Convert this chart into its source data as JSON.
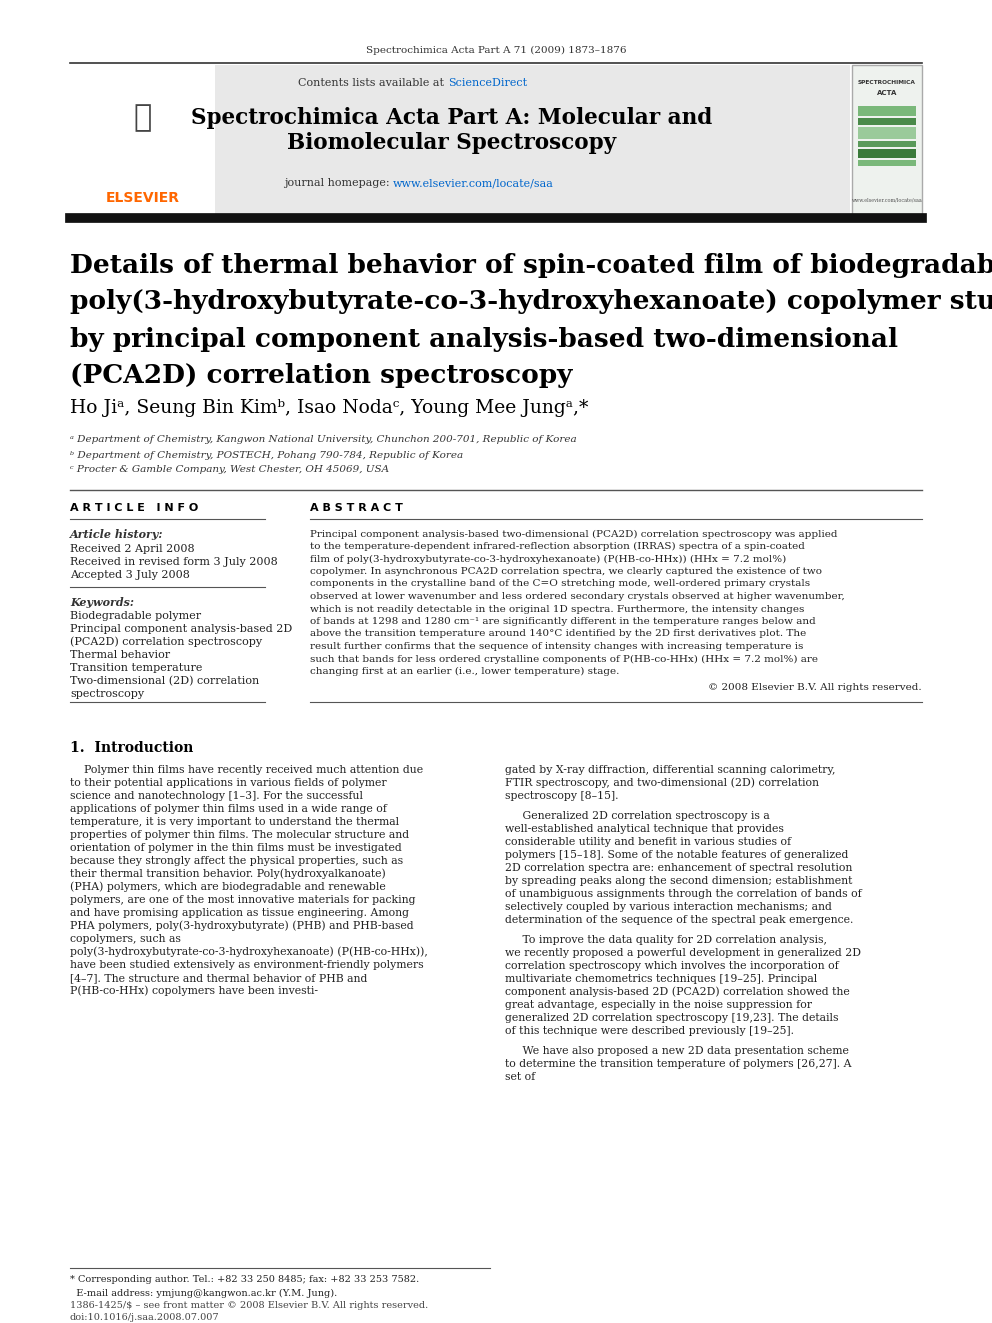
{
  "page_background": "#ffffff",
  "journal_ref": "Spectrochimica Acta Part A 71 (2009) 1873–1876",
  "contents_text": "Contents lists available at ",
  "sciencedirect_text": "ScienceDirect",
  "sciencedirect_color": "#0066cc",
  "journal_title_line1": "Spectrochimica Acta Part A: Molecular and",
  "journal_title_line2": "Biomolecular Spectroscopy",
  "journal_homepage_text": "journal homepage: ",
  "journal_homepage_url": "www.elsevier.com/locate/saa",
  "journal_homepage_color": "#0066cc",
  "header_bg": "#e8e8e8",
  "article_title": "Details of thermal behavior of spin-coated film of biodegradable\npoly(3-hydroxybutyrate-co-3-hydroxyhexanoate) copolymer studied\nby principal component analysis-based two-dimensional\n(PCA2D) correlation spectroscopy",
  "authors": "Ho Jiᵃ, Seung Bin Kimᵇ, Isao Nodaᶜ, Young Mee Jungᵃ,*",
  "affil_a": "ᵃ Department of Chemistry, Kangwon National University, Chunchon 200-701, Republic of Korea",
  "affil_b": "ᵇ Department of Chemistry, POSTECH, Pohang 790-784, Republic of Korea",
  "affil_c": "ᶜ Procter & Gamble Company, West Chester, OH 45069, USA",
  "article_info_title": "A R T I C L E   I N F O",
  "article_history_title": "Article history:",
  "received": "Received 2 April 2008",
  "revised": "Received in revised form 3 July 2008",
  "accepted": "Accepted 3 July 2008",
  "keywords_title": "Keywords:",
  "keywords": [
    "Biodegradable polymer",
    "Principal component analysis-based 2D\n(PCA2D) correlation spectroscopy",
    "Thermal behavior",
    "Transition temperature",
    "Two-dimensional (2D) correlation\nspectroscopy"
  ],
  "abstract_title": "A B S T R A C T",
  "abstract_text": "Principal component analysis-based two-dimensional (PCA2D) correlation spectroscopy was applied to the temperature-dependent infrared-reflection absorption (IRRAS) spectra of a spin-coated film of poly(3-hydroxybutyrate-co-3-hydroxyhexanoate) (P(HB-co-HHx)) (HHx = 7.2 mol%) copolymer. In asynchronous PCA2D correlation spectra, we clearly captured the existence of two components in the crystalline band of the C=O stretching mode, well-ordered primary crystals observed at lower wavenumber and less ordered secondary crystals observed at higher wavenumber, which is not readily detectable in the original 1D spectra. Furthermore, the intensity changes of bands at 1298 and 1280 cm⁻¹ are significantly different in the temperature ranges below and above the transition temperature around 140°C identified by the 2D first derivatives plot. The result further confirms that the sequence of intensity changes with increasing temperature is such that bands for less ordered crystalline components of P(HB-co-HHx) (HHx = 7.2 mol%) are changing first at an earlier (i.e., lower temperature) stage.",
  "copyright": "© 2008 Elsevier B.V. All rights reserved.",
  "intro_title": "1.  Introduction",
  "intro_col1": "Polymer thin films have recently received much attention due to their potential applications in various fields of polymer science and nanotechnology [1–3]. For the successful applications of polymer thin films used in a wide range of temperature, it is very important to understand the thermal properties of polymer thin films. The molecular structure and orientation of polymer in the thin films must be investigated because they strongly affect the physical properties, such as their thermal transition behavior. Poly(hydroxyalkanoate) (PHA) polymers, which are biodegradable and renewable polymers, are one of the most innovative materials for packing and have promising application as tissue engineering. Among PHA polymers, poly(3-hydroxybutyrate) (PHB) and PHB-based copolymers, such as poly(3-hydroxybutyrate-co-3-hydroxyhexanoate) (P(HB-co-HHx)), have been studied extensively as environment-friendly polymers [4–7]. The structure and thermal behavior of PHB and P(HB-co-HHx) copolymers have been investi-",
  "intro_col2": "gated by X-ray diffraction, differential scanning calorimetry, FTIR spectroscopy, and two-dimensional (2D) correlation spectroscopy [8–15].\n\nGeneralized 2D correlation spectroscopy is a well-established analytical technique that provides considerable utility and benefit in various studies of polymers [15–18]. Some of the notable features of generalized 2D correlation spectra are: enhancement of spectral resolution by spreading peaks along the second dimension; establishment of unambiguous assignments through the correlation of bands of selectively coupled by various interaction mechanisms; and determination of the sequence of the spectral peak emergence.\n\nTo improve the data quality for 2D correlation analysis, we recently proposed a powerful development in generalized 2D correlation spectroscopy which involves the incorporation of multivariate chemometrics techniques [19–25]. Principal component analysis-based 2D (PCA2D) correlation showed the great advantage, especially in the noise suppression for generalized 2D correlation spectroscopy [19,23]. The details of this technique were described previously [19–25].\n\nWe have also proposed a new 2D data presentation scheme to determine the transition temperature of polymers [26,27]. A set of",
  "footer_text": "1386-1425/$ – see front matter © 2008 Elsevier B.V. All rights reserved.\ndoi:10.1016/j.saa.2008.07.007",
  "footnote_text": "* Corresponding author. Tel.: +82 33 250 8485; fax: +82 33 253 7582.\n  E-mail address: ymjung@kangwon.ac.kr (Y.M. Jung)."
}
